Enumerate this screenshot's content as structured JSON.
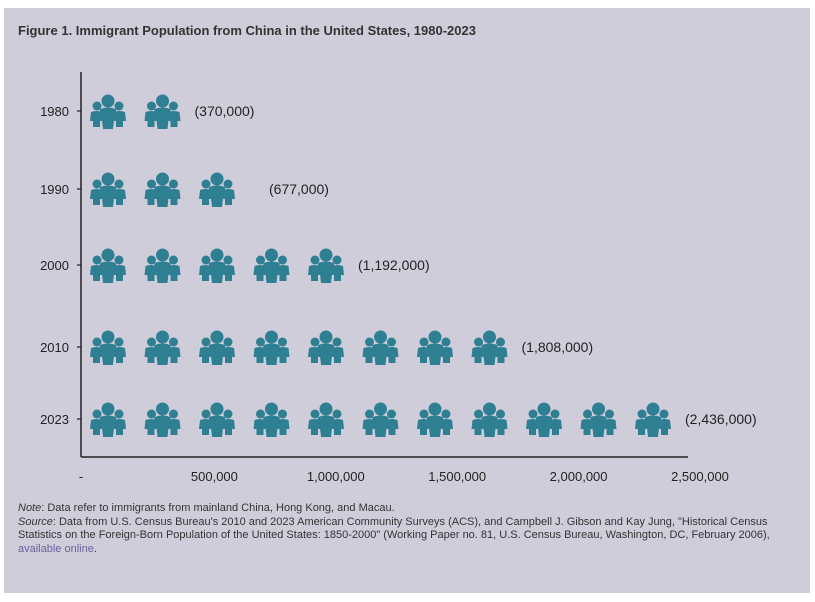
{
  "chart_data": {
    "type": "bar",
    "subtype": "pictograph",
    "title": "Figure 1. Immigrant Population from China in the United States, 1980-2023",
    "categories": [
      "1980",
      "1990",
      "2000",
      "2010",
      "2023"
    ],
    "values": [
      370000,
      677000,
      1192000,
      1808000,
      2436000
    ],
    "data_labels": [
      "(370,000)",
      "(677,000)",
      "(1,192,000)",
      "(1,808,000)",
      "(2,436,000)"
    ],
    "icon_counts": [
      2,
      3,
      5,
      8,
      11
    ],
    "icon": "people-group-icon",
    "xlim": [
      0,
      2500000
    ],
    "x_ticks": [
      0,
      500000,
      1000000,
      1500000,
      2000000,
      2500000
    ],
    "x_tick_labels": [
      "-",
      "500,000",
      "1,000,000",
      "1,500,000",
      "2,000,000",
      "2,500,000"
    ],
    "xlabel": "",
    "ylabel": "",
    "grid": false,
    "colors": {
      "icon": "#2f7f93",
      "background": "#d0cdda",
      "axis": "#222222"
    }
  },
  "notes": {
    "note_label": "Note",
    "note_text": ": Data refer to immigrants from mainland China, Hong Kong, and Macau.",
    "source_label": "Source",
    "source_text": ": Data from U.S. Census Bureau's 2010 and 2023 American Community Surveys (ACS), and Campbell J. Gibson and Kay Jung, \"Historical Census Statistics on the Foreign-Born Population of the United States: 1850-2000\" (Working Paper no. 81, U.S. Census Bureau, Washington, DC, February 2006), ",
    "link_text": "available online",
    "end": "."
  }
}
